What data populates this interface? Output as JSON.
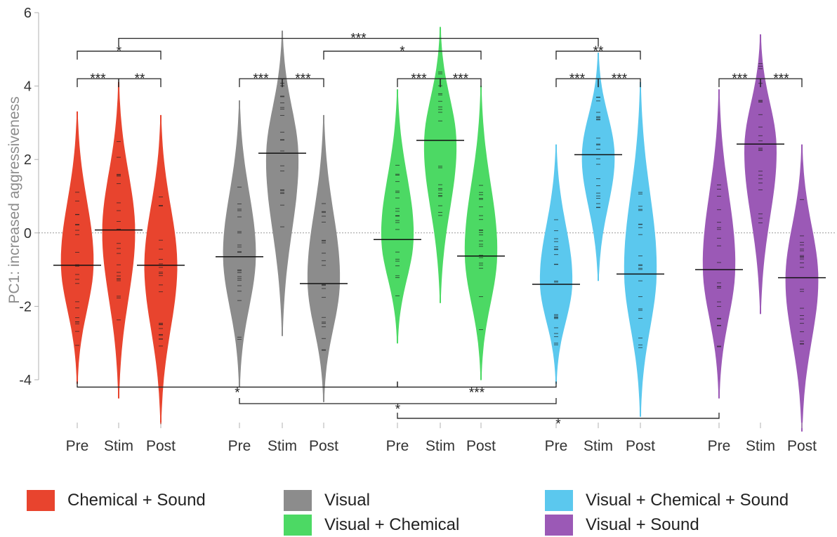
{
  "chart_data": {
    "type": "violin",
    "ylabel": "PC1: increased aggressiveness",
    "ylim": [
      -4.2,
      6
    ],
    "yticks": [
      6,
      4,
      2,
      0,
      -2,
      -4
    ],
    "reference_line": 0,
    "groups": [
      {
        "name": "Chemical + Sound",
        "color": "#E8442E",
        "conditions": [
          {
            "label": "Pre",
            "median": -0.88,
            "min": -4.1,
            "max": 3.3
          },
          {
            "label": "Stim",
            "median": 0.08,
            "min": -4.5,
            "max": 4.1
          },
          {
            "label": "Post",
            "median": -0.88,
            "min": -5.2,
            "max": 3.2
          }
        ]
      },
      {
        "name": "Visual",
        "color": "#8C8C8C",
        "conditions": [
          {
            "label": "Pre",
            "median": -0.65,
            "min": -4.2,
            "max": 3.6
          },
          {
            "label": "Stim",
            "median": 2.17,
            "min": -2.8,
            "max": 5.5
          },
          {
            "label": "Post",
            "median": -1.38,
            "min": -4.6,
            "max": 3.2
          }
        ]
      },
      {
        "name": "Visual + Chemical",
        "color": "#4CD964",
        "conditions": [
          {
            "label": "Pre",
            "median": -0.18,
            "min": -3.0,
            "max": 3.9
          },
          {
            "label": "Stim",
            "median": 2.52,
            "min": -1.9,
            "max": 5.6
          },
          {
            "label": "Post",
            "median": -0.63,
            "min": -4.0,
            "max": 4.0
          }
        ]
      },
      {
        "name": "Visual + Chemical + Sound",
        "color": "#5BC8EE",
        "conditions": [
          {
            "label": "Pre",
            "median": -1.4,
            "min": -4.1,
            "max": 2.4
          },
          {
            "label": "Stim",
            "median": 2.13,
            "min": -1.3,
            "max": 4.9
          },
          {
            "label": "Post",
            "median": -1.12,
            "min": -5.0,
            "max": 4.1
          }
        ]
      },
      {
        "name": "Visual + Sound",
        "color": "#9B59B6",
        "conditions": [
          {
            "label": "Pre",
            "median": -1.0,
            "min": -4.5,
            "max": 3.9
          },
          {
            "label": "Stim",
            "median": 2.42,
            "min": -2.2,
            "max": 5.4
          },
          {
            "label": "Post",
            "median": -1.22,
            "min": -5.4,
            "max": 2.4
          }
        ]
      }
    ],
    "significance": [
      {
        "from": [
          0,
          0
        ],
        "to": [
          0,
          1
        ],
        "label": "***",
        "y": 4.2
      },
      {
        "from": [
          0,
          1
        ],
        "to": [
          0,
          2
        ],
        "label": "**",
        "y": 4.2
      },
      {
        "from": [
          0,
          0
        ],
        "to": [
          0,
          2
        ],
        "label": "*",
        "y": 4.95
      },
      {
        "from": [
          0,
          1
        ],
        "to": [
          3,
          1
        ],
        "label": "***",
        "y": 5.3
      },
      {
        "from": [
          1,
          0
        ],
        "to": [
          1,
          1
        ],
        "label": "***",
        "y": 4.2
      },
      {
        "from": [
          1,
          1
        ],
        "to": [
          1,
          2
        ],
        "label": "***",
        "y": 4.2
      },
      {
        "from": [
          1,
          2
        ],
        "to": [
          2,
          2
        ],
        "label": "*",
        "y": 4.95
      },
      {
        "from": [
          2,
          0
        ],
        "to": [
          2,
          1
        ],
        "label": "***",
        "y": 4.2
      },
      {
        "from": [
          2,
          1
        ],
        "to": [
          2,
          2
        ],
        "label": "***",
        "y": 4.2
      },
      {
        "from": [
          3,
          0
        ],
        "to": [
          3,
          1
        ],
        "label": "***",
        "y": 4.2
      },
      {
        "from": [
          3,
          1
        ],
        "to": [
          3,
          2
        ],
        "label": "***",
        "y": 4.2
      },
      {
        "from": [
          3,
          0
        ],
        "to": [
          3,
          2
        ],
        "label": "**",
        "y": 4.95
      },
      {
        "from": [
          4,
          0
        ],
        "to": [
          4,
          1
        ],
        "label": "***",
        "y": 4.2
      },
      {
        "from": [
          4,
          1
        ],
        "to": [
          4,
          2
        ],
        "label": "***",
        "y": 4.2
      },
      {
        "from": [
          0,
          0
        ],
        "to": [
          2,
          0
        ],
        "label": "*",
        "y": -4.2
      },
      {
        "from": [
          2,
          0
        ],
        "to": [
          3,
          0
        ],
        "label": "***",
        "y": -4.2
      },
      {
        "from": [
          1,
          0
        ],
        "to": [
          3,
          0
        ],
        "label": "*",
        "y": -4.65
      },
      {
        "from": [
          2,
          0
        ],
        "to": [
          4,
          0
        ],
        "label": "*",
        "y": -5.05
      }
    ]
  }
}
